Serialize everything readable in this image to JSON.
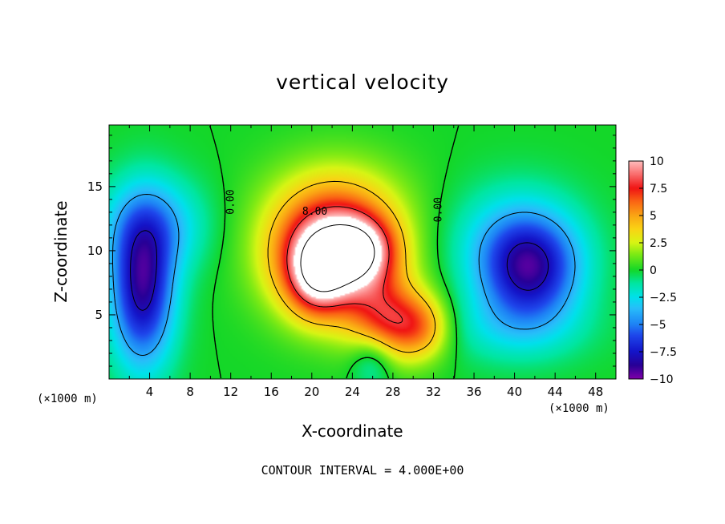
{
  "chart_data": {
    "type": "heatmap",
    "title": "vertical velocity",
    "xlabel": "X-coordinate",
    "ylabel": "Z-coordinate",
    "x_unit_label": "(×1000 m)",
    "footer": "CONTOUR INTERVAL = 4.000E+00",
    "xlim": [
      0,
      50
    ],
    "ylim": [
      0,
      19.8
    ],
    "x_ticks": [
      4,
      8,
      12,
      16,
      20,
      24,
      28,
      32,
      36,
      40,
      44,
      48
    ],
    "y_ticks": [
      5,
      10,
      15
    ],
    "colorbar": {
      "min": -10,
      "max": 10,
      "ticks": [
        10,
        7.5,
        5,
        2.5,
        0,
        -2.5,
        -5,
        -7.5,
        -10
      ],
      "tick_labels": [
        "10",
        "7.5",
        "5",
        "2.5",
        "0",
        "−2.5",
        "−5",
        "−7.5",
        "−10"
      ]
    },
    "contour_interval": 4.0,
    "contour_labels": [
      {
        "text": "0.00",
        "x": 12.3,
        "z": 13.8
      },
      {
        "text": "8.00",
        "x": 20.3,
        "z": 12.8
      },
      {
        "text": "0.00",
        "x": 32.8,
        "z": 13.2
      }
    ],
    "field_features": [
      {
        "kind": "updraft",
        "x": 22.0,
        "z": 9.5,
        "sx": 4.2,
        "sz": 3.2,
        "value": 10.5
      },
      {
        "kind": "updraft",
        "x": 20.5,
        "z": 8.0,
        "sx": 2.0,
        "sz": 2.2,
        "value": 5.0
      },
      {
        "kind": "updraft",
        "x": 25.0,
        "z": 10.0,
        "sx": 2.4,
        "sz": 1.8,
        "value": 5.0
      },
      {
        "kind": "updraft",
        "x": 27.5,
        "z": 4.5,
        "sx": 2.6,
        "sz": 2.2,
        "value": 6.0
      },
      {
        "kind": "updraft",
        "x": 31.0,
        "z": 4.0,
        "sx": 2.0,
        "sz": 1.8,
        "value": 4.0
      },
      {
        "kind": "updraft",
        "x": 22.5,
        "z": 13.5,
        "sx": 5.0,
        "sz": 3.0,
        "value": 2.5
      },
      {
        "kind": "downdraft",
        "x": 3.3,
        "z": 7.0,
        "sx": 2.2,
        "sz": 4.2,
        "value": -8.5
      },
      {
        "kind": "downdraft",
        "x": 4.5,
        "z": 12.0,
        "sx": 3.5,
        "sz": 2.6,
        "value": -3.5
      },
      {
        "kind": "downdraft",
        "x": 41.5,
        "z": 8.5,
        "sx": 3.4,
        "sz": 2.8,
        "value": -7.5
      },
      {
        "kind": "downdraft",
        "x": 40.0,
        "z": 11.0,
        "sx": 4.5,
        "sz": 3.0,
        "value": -2.5
      },
      {
        "kind": "downdraft",
        "x": 40.0,
        "z": 4.0,
        "sx": 5.0,
        "sz": 2.0,
        "value": -2.0
      },
      {
        "kind": "downdraft",
        "x": 26.0,
        "z": 1.5,
        "sx": 1.5,
        "sz": 1.5,
        "value": -2.5
      }
    ]
  }
}
